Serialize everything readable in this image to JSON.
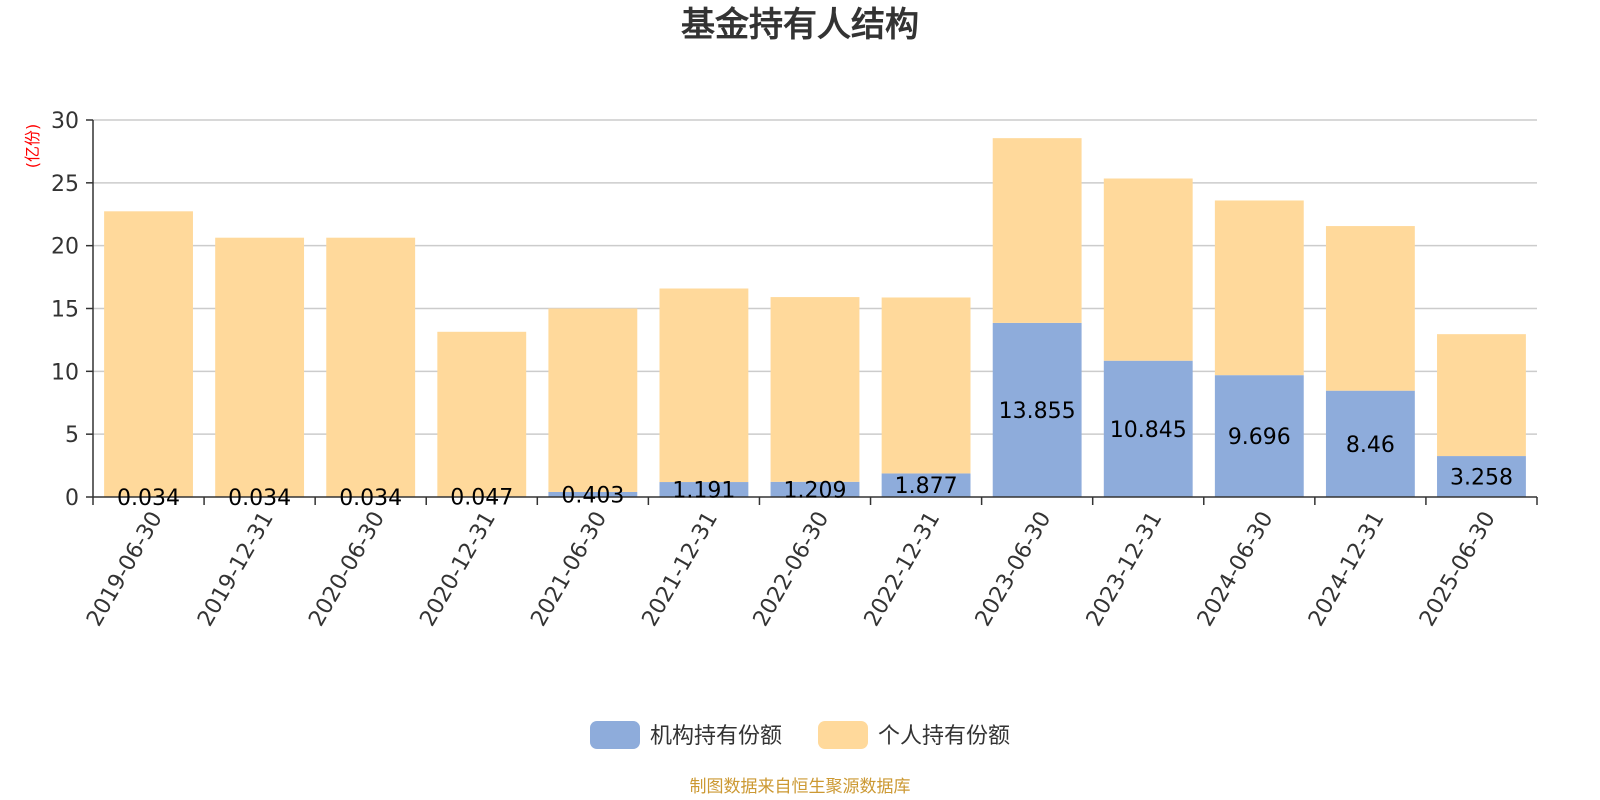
{
  "chart_data": {
    "type": "bar",
    "stacked": true,
    "title": "基金持有人结构",
    "ylabel": "(亿份)",
    "ylim": [
      0,
      30
    ],
    "yticks": [
      0,
      5,
      10,
      15,
      20,
      25,
      30
    ],
    "grid": true,
    "legend_position": "bottom",
    "categories": [
      "2019-06-30",
      "2019-12-31",
      "2020-06-30",
      "2020-12-31",
      "2021-06-30",
      "2021-12-31",
      "2022-06-30",
      "2022-12-31",
      "2023-06-30",
      "2023-12-31",
      "2024-06-30",
      "2024-12-31",
      "2025-06-30"
    ],
    "series": [
      {
        "name": "机构持有份额",
        "color": "#8eacdb",
        "values": [
          0.034,
          0.034,
          0.034,
          0.047,
          0.403,
          1.191,
          1.209,
          1.877,
          13.855,
          10.845,
          9.696,
          8.46,
          3.258
        ],
        "labels": [
          "0.034",
          "0.034",
          "0.034",
          "0.047",
          "0.403",
          "1.191",
          "1.209",
          "1.877",
          "13.855",
          "10.845",
          "9.696",
          "8.46",
          "3.258"
        ]
      },
      {
        "name": "个人持有份额",
        "color": "#ffd99b",
        "values": [
          22.7,
          20.6,
          20.6,
          13.1,
          14.6,
          15.4,
          14.7,
          14.0,
          14.7,
          14.5,
          13.9,
          13.1,
          9.7
        ]
      }
    ],
    "source": "制图数据来自恒生聚源数据库"
  }
}
